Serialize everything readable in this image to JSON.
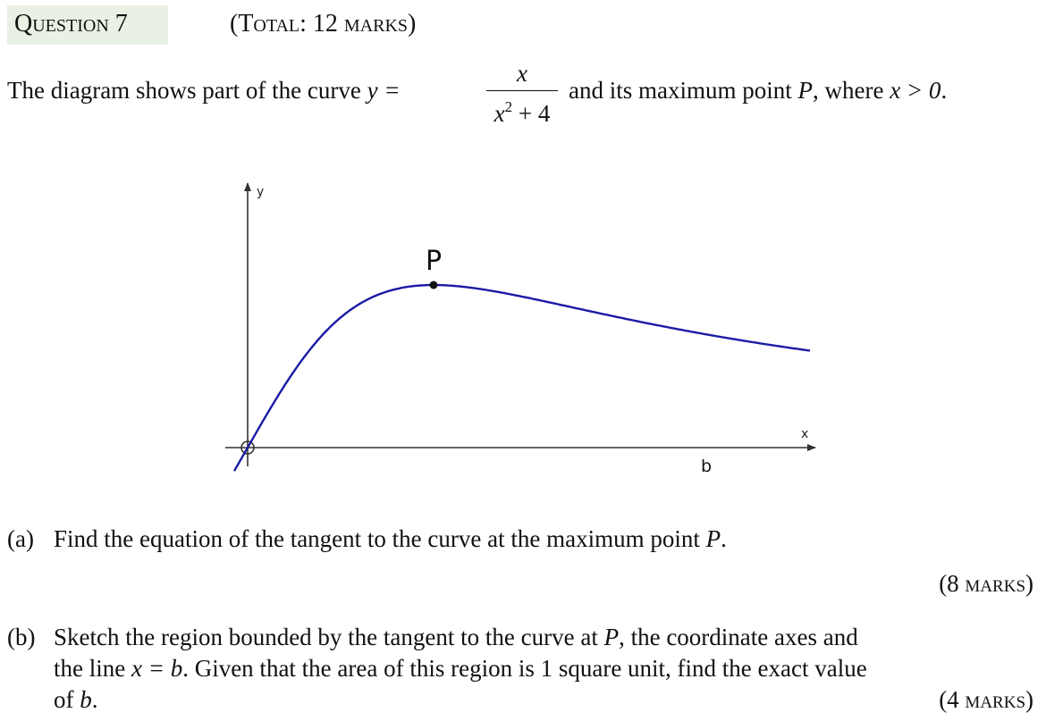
{
  "header": {
    "question_label": "Question 7",
    "total_label": "(Total: 12 marks)"
  },
  "intro": {
    "text_before": "The diagram shows part of the curve",
    "y_eq": "y =",
    "frac_numerator": "x",
    "frac_denominator_base": "x",
    "frac_denominator_exp": "2",
    "frac_denominator_tail": " + 4",
    "text_after_1": "and its maximum point",
    "point_name": "P",
    "text_after_2": ", where",
    "condition": "x > 0",
    "period": "."
  },
  "diagram": {
    "y_axis_label": "y",
    "x_axis_label": "x",
    "point_label": "P",
    "b_label": "b",
    "curve_color": "#1a1aa6",
    "axis_color": "#333333"
  },
  "part_a": {
    "label": "(a)",
    "text_1": "Find the equation of the tangent to the curve at the maximum point",
    "point": "P",
    "text_2": ".",
    "marks": "(8 marks)"
  },
  "part_b": {
    "label": "(b)",
    "line1_a": "Sketch the region bounded by the tangent to the curve at",
    "line1_point": "P",
    "line1_b": ", the coordinate axes and",
    "line2_a": "the line",
    "line2_eq": "x = b",
    "line2_b": ". Given that the area of this region is 1 square unit, find the exact value",
    "line3_a": "of",
    "line3_var": "b",
    "line3_b": ".",
    "marks": "(4 marks)"
  }
}
